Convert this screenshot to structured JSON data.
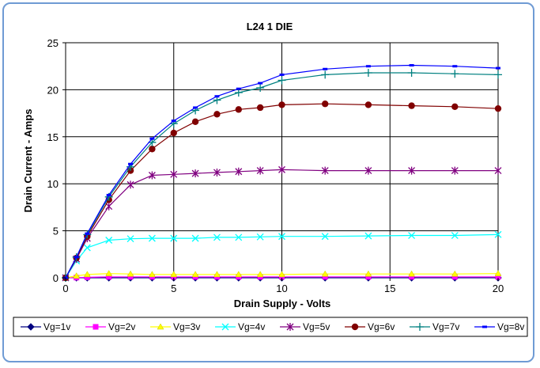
{
  "chart_data": {
    "type": "line",
    "title": "L24 1 DIE",
    "xlabel": "Drain  Supply - Volts",
    "ylabel": "Drain Current - Amps",
    "xlim": [
      0,
      20
    ],
    "ylim": [
      0,
      25
    ],
    "xticks": [
      0,
      5,
      10,
      15,
      20
    ],
    "yticks": [
      0,
      5,
      10,
      15,
      20,
      25
    ],
    "grid": true,
    "legend_position": "bottom",
    "x": [
      0,
      0.5,
      1,
      2,
      3,
      4,
      5,
      6,
      7,
      8,
      9,
      10,
      12,
      14,
      16,
      18,
      20
    ],
    "series": [
      {
        "name": "Vg=1v",
        "color": "#000080",
        "marker": "diamond",
        "values": [
          0,
          0,
          0,
          0,
          0,
          0,
          0,
          0,
          0,
          0,
          0,
          0,
          0,
          0,
          0,
          0,
          0
        ]
      },
      {
        "name": "Vg=2v",
        "color": "#ff00ff",
        "marker": "square",
        "values": [
          0,
          0.02,
          0.05,
          0.1,
          0.1,
          0.1,
          0.1,
          0.1,
          0.1,
          0.1,
          0.1,
          0.1,
          0.1,
          0.1,
          0.1,
          0.1,
          0.1
        ]
      },
      {
        "name": "Vg=3v",
        "color": "#ffff00",
        "marker": "triangle",
        "values": [
          0,
          0.2,
          0.35,
          0.45,
          0.4,
          0.35,
          0.35,
          0.35,
          0.35,
          0.35,
          0.35,
          0.35,
          0.4,
          0.4,
          0.4,
          0.4,
          0.45
        ]
      },
      {
        "name": "Vg=4v",
        "color": "#00ffff",
        "marker": "x",
        "values": [
          0,
          1.8,
          3.2,
          4.0,
          4.15,
          4.2,
          4.2,
          4.2,
          4.3,
          4.3,
          4.35,
          4.4,
          4.4,
          4.45,
          4.5,
          4.5,
          4.6
        ]
      },
      {
        "name": "Vg=5v",
        "color": "#800080",
        "marker": "star",
        "values": [
          0,
          2.0,
          4.2,
          7.6,
          9.9,
          10.9,
          11.0,
          11.1,
          11.2,
          11.3,
          11.4,
          11.5,
          11.4,
          11.4,
          11.4,
          11.4,
          11.4
        ]
      },
      {
        "name": "Vg=6v",
        "color": "#800000",
        "marker": "circle",
        "values": [
          0,
          2.1,
          4.4,
          8.3,
          11.4,
          13.7,
          15.4,
          16.6,
          17.4,
          17.9,
          18.1,
          18.4,
          18.5,
          18.4,
          18.3,
          18.2,
          18.0
        ]
      },
      {
        "name": "Vg=7v",
        "color": "#008080",
        "marker": "plus",
        "values": [
          0,
          2.2,
          4.6,
          8.6,
          11.8,
          14.4,
          16.4,
          17.8,
          18.9,
          19.7,
          20.2,
          21.0,
          21.6,
          21.8,
          21.8,
          21.7,
          21.6
        ]
      },
      {
        "name": "Vg=8v",
        "color": "#0000ff",
        "marker": "dash",
        "values": [
          0,
          2.2,
          4.7,
          8.8,
          12.1,
          14.8,
          16.7,
          18.1,
          19.3,
          20.1,
          20.7,
          21.6,
          22.2,
          22.5,
          22.6,
          22.5,
          22.3
        ]
      }
    ]
  }
}
